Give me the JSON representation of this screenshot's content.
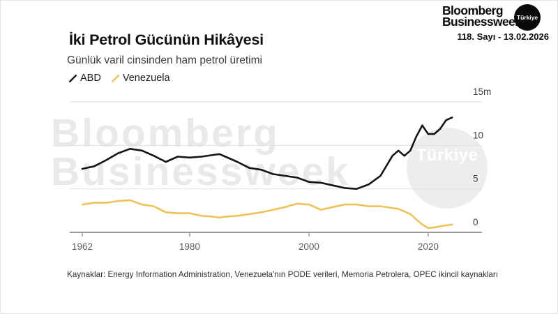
{
  "masthead": {
    "logo_line1": "Bloomberg",
    "logo_line2": "Businessweek",
    "logo_badge": "Türkiye",
    "issue_line": "118. Sayı - 13.02.2026"
  },
  "header": {
    "title": "İki Petrol Gücünün Hikâyesi",
    "subtitle": "Günlük varil cinsinden ham petrol üretimi",
    "legend": [
      {
        "label": "ABD",
        "color": "#141414"
      },
      {
        "label": "Venezuela",
        "color": "#ECC35A"
      }
    ]
  },
  "watermark": {
    "line1": "Bloomberg",
    "line2": "Businessweek",
    "badge": "Türkiye"
  },
  "chart_data": {
    "type": "line",
    "title": "İki Petrol Gücünün Hikâyesi",
    "subtitle": "Günlük varil cinsinden ham petrol üretimi",
    "unit": "million barrels per day",
    "grid": "horizontal",
    "legend_position": "top-left",
    "xlim": [
      1960,
      2027
    ],
    "ylim": [
      0,
      15
    ],
    "x_ticks": [
      {
        "value": 1962,
        "label": "1962"
      },
      {
        "value": 1980,
        "label": "1980"
      },
      {
        "value": 2000,
        "label": "2000"
      },
      {
        "value": 2020,
        "label": "2020"
      }
    ],
    "y_ticks": [
      {
        "value": 0,
        "label": "0"
      },
      {
        "value": 5,
        "label": "5"
      },
      {
        "value": 10,
        "label": "10"
      },
      {
        "value": 15,
        "label": "15m"
      }
    ],
    "x": [
      1962,
      1964,
      1966,
      1968,
      1970,
      1972,
      1974,
      1976,
      1978,
      1980,
      1982,
      1984,
      1985,
      1986,
      1988,
      1990,
      1992,
      1994,
      1996,
      1998,
      2000,
      2002,
      2004,
      2006,
      2008,
      2010,
      2012,
      2014,
      2015,
      2016,
      2017,
      2018,
      2019,
      2020,
      2021,
      2022,
      2023,
      2024
    ],
    "series": [
      {
        "name": "ABD",
        "color": "#141414",
        "values": [
          7.3,
          7.6,
          8.3,
          9.1,
          9.6,
          9.4,
          8.8,
          8.1,
          8.7,
          8.6,
          8.7,
          8.9,
          9.0,
          8.7,
          8.1,
          7.4,
          7.2,
          6.7,
          6.5,
          6.3,
          5.8,
          5.7,
          5.4,
          5.1,
          5.0,
          5.5,
          6.5,
          8.8,
          9.4,
          8.8,
          9.4,
          11.0,
          12.3,
          11.3,
          11.3,
          11.9,
          12.9,
          13.2
        ]
      },
      {
        "name": "Venezuela",
        "color": "#ECC35A",
        "values": [
          3.2,
          3.4,
          3.4,
          3.6,
          3.7,
          3.2,
          3.0,
          2.3,
          2.2,
          2.2,
          1.9,
          1.8,
          1.7,
          1.8,
          1.9,
          2.1,
          2.3,
          2.6,
          2.9,
          3.3,
          3.2,
          2.6,
          2.9,
          3.2,
          3.2,
          3.0,
          3.0,
          2.8,
          2.7,
          2.4,
          2.1,
          1.5,
          0.9,
          0.5,
          0.55,
          0.7,
          0.8,
          0.9
        ]
      }
    ]
  },
  "footer": {
    "source": "Kaynaklar: Energy Information Administration, Venezuela'nın PODE verileri, Memoria Petrolera, OPEC ikincil kaynakları"
  }
}
